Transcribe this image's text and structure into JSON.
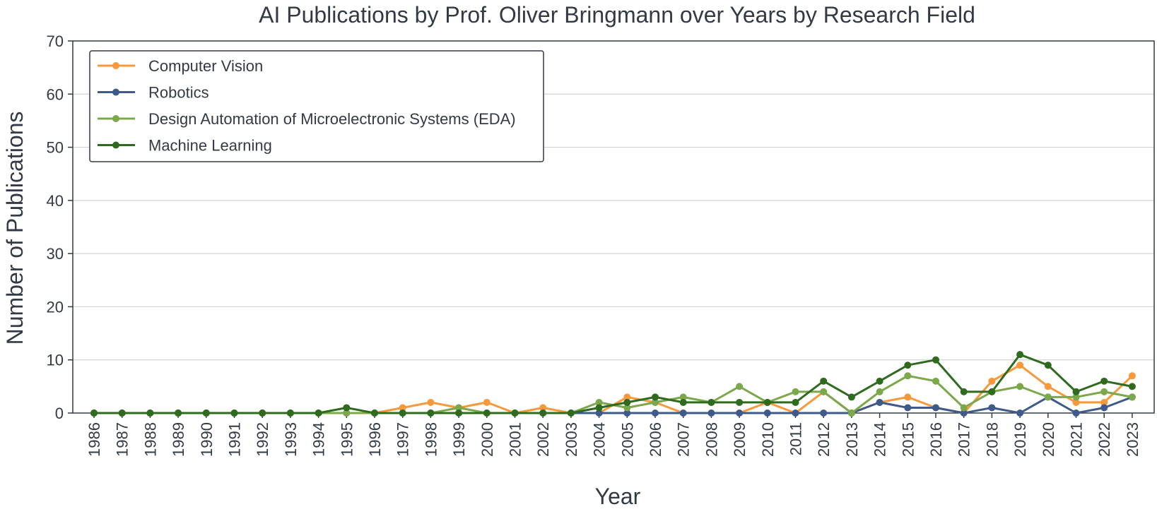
{
  "chart_data": {
    "type": "line",
    "title": "AI Publications by Prof. Oliver Bringmann over Years by Research Field",
    "xlabel": "Year",
    "ylabel": "Number of Publications",
    "ylim": [
      0,
      70
    ],
    "yticks": [
      0,
      10,
      20,
      30,
      40,
      50,
      60,
      70
    ],
    "grid": "horizontal",
    "legend_position": "top-left",
    "categories": [
      "1986",
      "1987",
      "1988",
      "1989",
      "1990",
      "1991",
      "1992",
      "1993",
      "1994",
      "1995",
      "1996",
      "1997",
      "1998",
      "1999",
      "2000",
      "2001",
      "2002",
      "2003",
      "2004",
      "2005",
      "2006",
      "2007",
      "2008",
      "2009",
      "2010",
      "2011",
      "2012",
      "2013",
      "2014",
      "2015",
      "2016",
      "2017",
      "2018",
      "2019",
      "2020",
      "2021",
      "2022",
      "2023"
    ],
    "series": [
      {
        "name": "Computer Vision",
        "color": "#f7993a",
        "values": [
          0,
          0,
          0,
          0,
          0,
          0,
          0,
          0,
          0,
          0,
          0,
          1,
          2,
          1,
          2,
          0,
          1,
          0,
          0,
          3,
          2,
          0,
          0,
          0,
          2,
          0,
          4,
          0,
          2,
          3,
          1,
          0,
          6,
          9,
          5,
          2,
          2,
          7
        ]
      },
      {
        "name": "Robotics",
        "color": "#3d5a8a",
        "values": [
          0,
          0,
          0,
          0,
          0,
          0,
          0,
          0,
          0,
          0,
          0,
          0,
          0,
          0,
          0,
          0,
          0,
          0,
          0,
          0,
          0,
          0,
          0,
          0,
          0,
          0,
          0,
          0,
          2,
          1,
          1,
          0,
          1,
          0,
          3,
          0,
          1,
          3
        ]
      },
      {
        "name": "Design Automation of Microelectronic Systems (EDA)",
        "color": "#7ba84a",
        "values": [
          0,
          0,
          0,
          0,
          0,
          0,
          0,
          0,
          0,
          0,
          0,
          0,
          0,
          1,
          0,
          0,
          0,
          0,
          2,
          1,
          2,
          3,
          2,
          5,
          2,
          4,
          4,
          0,
          4,
          7,
          6,
          1,
          4,
          5,
          3,
          3,
          4,
          3
        ]
      },
      {
        "name": "Machine Learning",
        "color": "#2e6b1e",
        "values": [
          0,
          0,
          0,
          0,
          0,
          0,
          0,
          0,
          0,
          1,
          0,
          0,
          0,
          0,
          0,
          0,
          0,
          0,
          1,
          2,
          3,
          2,
          2,
          2,
          2,
          2,
          6,
          3,
          6,
          9,
          10,
          4,
          4,
          11,
          9,
          4,
          6,
          5
        ]
      }
    ]
  }
}
